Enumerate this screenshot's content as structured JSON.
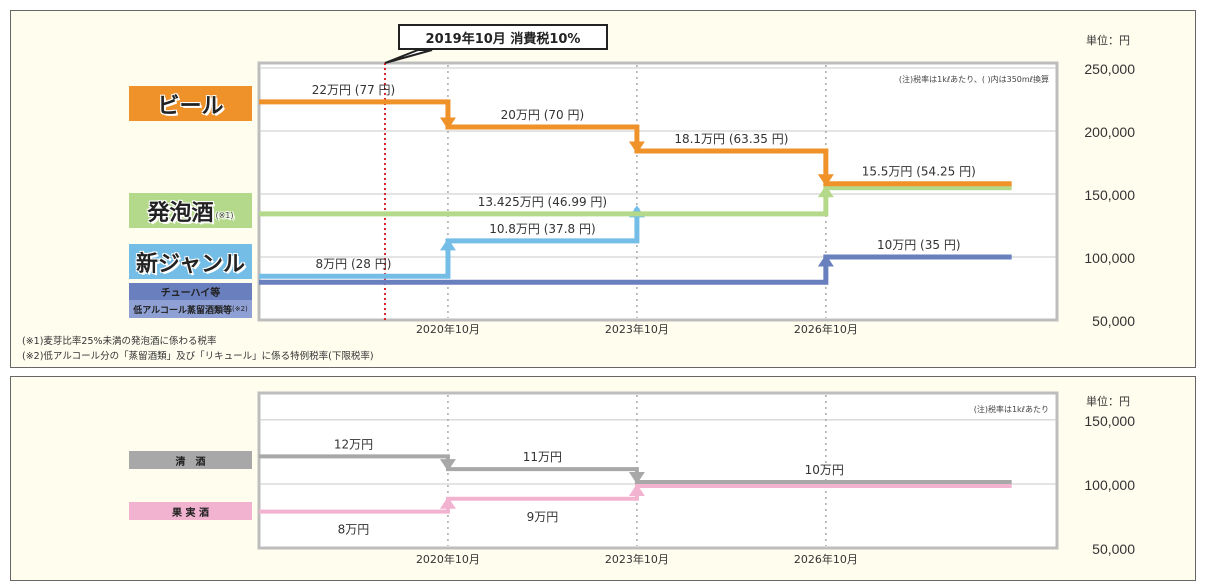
{
  "callout": "2019年10月 消費税10%",
  "footnotes": [
    "(※1)麦芽比率25%未満の発泡酒に係わる税率",
    "(※2)低アルコール分の「蒸留酒類」及び「リキュール」に係る特例税率(下限税率)"
  ],
  "legend_top": {
    "beer": "ビール",
    "happoshu": "発泡酒",
    "happoshu_note": "(※1)",
    "new_genre": "新ジャンル",
    "chuhai": "チューハイ等",
    "low_alcohol": "低アルコール蒸留酒類等",
    "low_alcohol_note": "(※2)"
  },
  "legend_bottom": {
    "sake": "清　酒",
    "fruit_wine": "果 実 酒"
  },
  "colors": {
    "beer": "#f0922a",
    "happoshu": "#b5d98a",
    "new_genre": "#74bde6",
    "chuhai": "#6a7fbd",
    "low_alcohol": "#8fa0d4",
    "sake": "#a8a8a8",
    "fruit_wine": "#f2b3d0",
    "consumption_tax_line": "#d9262c"
  },
  "chart_data": [
    {
      "type": "line",
      "step": true,
      "unit_label": "単位：円",
      "note": "(注)税率は1kℓあたり、( )内は350mℓ換算",
      "xlim": [
        2017.75,
        2030.42
      ],
      "ylim": [
        50000,
        254000
      ],
      "yticks": [
        250000,
        200000,
        150000,
        100000,
        50000
      ],
      "ytick_labels": [
        "250,000",
        "200,000",
        "150,000",
        "100,000",
        "50,000"
      ],
      "xticks": [
        2020.75,
        2023.75,
        2026.75
      ],
      "xtick_labels": [
        "2020年10月",
        "2023年10月",
        "2026年10月"
      ],
      "marker_line": {
        "x": 2019.75,
        "label": "2019年10月 消費税10%"
      },
      "grid": true,
      "series": [
        {
          "name": "チューハイ等",
          "key": "chuhai",
          "segments": [
            {
              "x0": 2017.75,
              "x1": 2026.75,
              "y": 80000,
              "label": null
            },
            {
              "x0": 2026.75,
              "x1": 2029.7,
              "y": 100000,
              "label": "10万円 (35 円)",
              "label_pos": "above"
            }
          ]
        },
        {
          "name": "新ジャンル",
          "key": "new_genre",
          "segments": [
            {
              "x0": 2017.75,
              "x1": 2020.75,
              "y": 80000,
              "label": "8万円 (28 円)",
              "label_pos": "above"
            },
            {
              "x0": 2020.75,
              "x1": 2023.75,
              "y": 108000,
              "label": "10.8万円 (37.8 円)",
              "label_pos": "above"
            },
            {
              "x0": 2023.75,
              "x1": 2023.75,
              "y": 134250,
              "label": null
            }
          ]
        },
        {
          "name": "発泡酒",
          "key": "happoshu",
          "segments": [
            {
              "x0": 2017.75,
              "x1": 2026.75,
              "y": 134250,
              "label": "13.425万円 (46.99 円)",
              "label_pos": "above"
            },
            {
              "x0": 2026.75,
              "x1": 2029.7,
              "y": 155000,
              "label": null
            }
          ]
        },
        {
          "name": "ビール",
          "key": "beer",
          "segments": [
            {
              "x0": 2017.75,
              "x1": 2020.75,
              "y": 220000,
              "label": "22万円 (77 円)",
              "label_pos": "above"
            },
            {
              "x0": 2020.75,
              "x1": 2023.75,
              "y": 200000,
              "label": "20万円 (70 円)",
              "label_pos": "above"
            },
            {
              "x0": 2023.75,
              "x1": 2026.75,
              "y": 181000,
              "label": "18.1万円 (63.35 円)",
              "label_pos": "above"
            },
            {
              "x0": 2026.75,
              "x1": 2029.7,
              "y": 155000,
              "label": "15.5万円 (54.25 円)",
              "label_pos": "above"
            }
          ]
        }
      ]
    },
    {
      "type": "line",
      "step": true,
      "unit_label": "単位：円",
      "note": "(注)税率は1kℓあたり",
      "xlim": [
        2017.75,
        2030.42
      ],
      "ylim": [
        50000,
        171000
      ],
      "yticks": [
        150000,
        100000,
        50000
      ],
      "ytick_labels": [
        "150,000",
        "100,000",
        "50,000"
      ],
      "xticks": [
        2020.75,
        2023.75,
        2026.75
      ],
      "xtick_labels": [
        "2020年10月",
        "2023年10月",
        "2026年10月"
      ],
      "grid": true,
      "series": [
        {
          "name": "果実酒",
          "key": "fruit_wine",
          "segments": [
            {
              "x0": 2017.75,
              "x1": 2020.75,
              "y": 80000,
              "label": "8万円",
              "label_pos": "below"
            },
            {
              "x0": 2020.75,
              "x1": 2023.75,
              "y": 90000,
              "label": "9万円",
              "label_pos": "below"
            },
            {
              "x0": 2023.75,
              "x1": 2029.7,
              "y": 100000,
              "label": null
            }
          ]
        },
        {
          "name": "清酒",
          "key": "sake",
          "segments": [
            {
              "x0": 2017.75,
              "x1": 2020.75,
              "y": 120000,
              "label": "12万円",
              "label_pos": "above"
            },
            {
              "x0": 2020.75,
              "x1": 2023.75,
              "y": 110000,
              "label": "11万円",
              "label_pos": "above"
            },
            {
              "x0": 2023.75,
              "x1": 2029.7,
              "y": 100000,
              "label": "10万円",
              "label_pos": "above"
            }
          ]
        }
      ]
    }
  ]
}
